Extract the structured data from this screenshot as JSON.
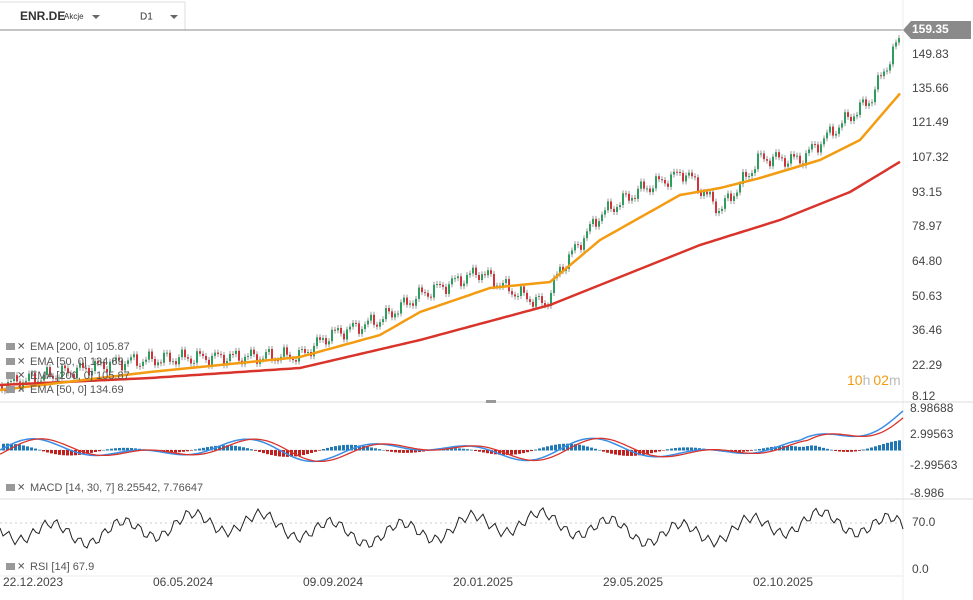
{
  "header": {
    "symbol": "ENR.DE",
    "asset_type": "Akcje",
    "timeframe": "D1"
  },
  "price_axis": [
    "159.35",
    "149.83",
    "135.66",
    "121.49",
    "107.32",
    "93.15",
    "78.97",
    "64.80",
    "50.63",
    "36.46",
    "22.29",
    "8.12"
  ],
  "macd_axis": [
    "8.98688",
    "2.99563",
    "-2.99563",
    "-8.986"
  ],
  "rsi_axis": [
    "70.0",
    "0.0"
  ],
  "date_axis": [
    "22.12.2023",
    "06.05.2024",
    "09.09.2024",
    "20.01.2025",
    "29.05.2025",
    "02.10.2025"
  ],
  "indicators": [
    "EMA [200,  0]  105.87",
    "EMA [50,  0]  134.69",
    "EMA [200,  0]  105.87",
    "EMA [50,  0]  134.69"
  ],
  "countdown": {
    "hours": "10",
    "h": "h",
    "minutes": "02",
    "m": "m"
  },
  "macd_legend": "MACD [14, 30, 7]  8.25542,  7.76647",
  "rsi_legend": "RSI [14]  67.9"
}
